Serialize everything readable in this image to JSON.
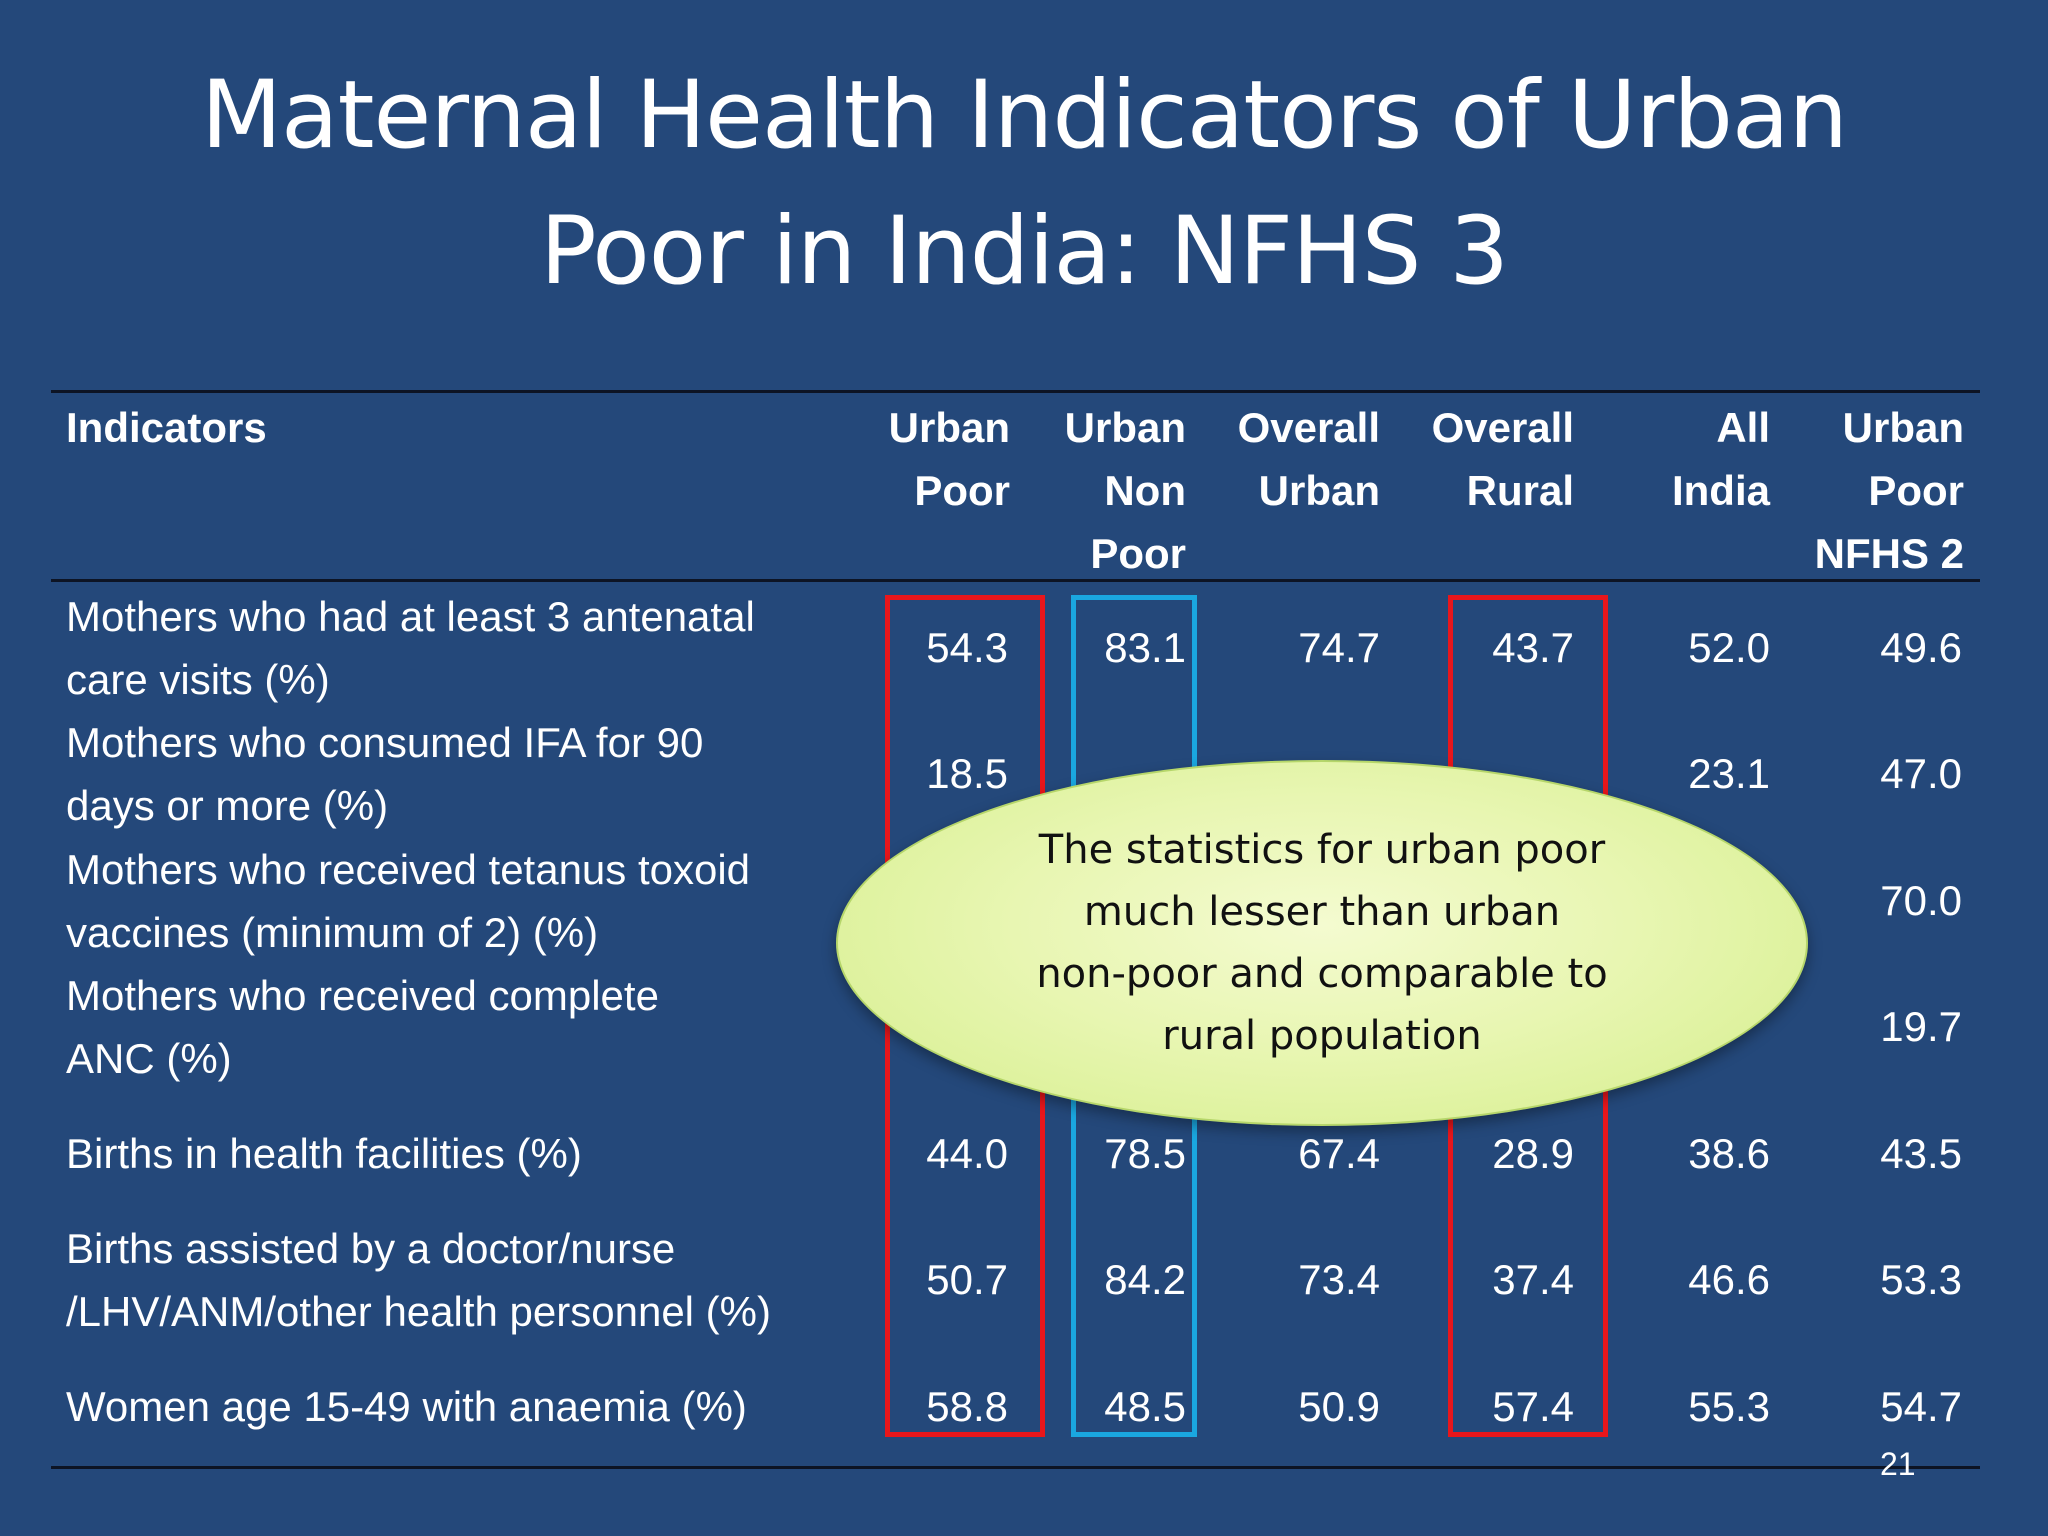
{
  "title": {
    "line1": "Maternal Health Indicators of Urban",
    "line2": "Poor in India: NFHS 3"
  },
  "table": {
    "header": {
      "indicators": "Indicators",
      "urban_poor": [
        "Urban",
        "Poor"
      ],
      "urban_non_poor": [
        "Urban",
        "Non",
        "Poor"
      ],
      "overall_urban": [
        "Overall",
        "Urban"
      ],
      "overall_rural": [
        "Overall",
        "Rural"
      ],
      "all_india": [
        "All",
        "India"
      ],
      "urban_poor_nfhs2": [
        "Urban",
        "Poor",
        "NFHS 2"
      ]
    },
    "rows": [
      {
        "label": [
          "Mothers who had at least 3 antenatal",
          "care visits (%)"
        ],
        "values": [
          "54.3",
          "83.1",
          "74.7",
          "43.7",
          "52.0",
          "49.6"
        ]
      },
      {
        "label": [
          "Mothers who consumed IFA for 90",
          "days or more (%)"
        ],
        "values": [
          "18.5",
          "",
          "",
          "",
          "23.1",
          "47.0"
        ]
      },
      {
        "label": [
          "Mothers who received tetanus toxoid",
          "vaccines (minimum of 2) (%)"
        ],
        "values": [
          "",
          "",
          "",
          "",
          "",
          "70.0"
        ]
      },
      {
        "label": [
          "Mothers who received complete",
          "ANC (%)"
        ],
        "values": [
          "",
          "",
          "",
          "",
          "",
          "19.7"
        ]
      },
      {
        "label": [
          "Births in health facilities (%)"
        ],
        "values": [
          "44.0",
          "78.5",
          "67.4",
          "28.9",
          "38.6",
          "43.5"
        ]
      },
      {
        "label": [
          "Births assisted by a doctor/nurse",
          "/LHV/ANM/other health personnel (%)"
        ],
        "values": [
          "50.7",
          "84.2",
          "73.4",
          "37.4",
          "46.6",
          "53.3"
        ]
      },
      {
        "label": [
          "Women age 15-49 with anaemia (%)"
        ],
        "values": [
          "58.8",
          "48.5",
          "50.9",
          "57.4",
          "55.3",
          "54.7"
        ]
      }
    ]
  },
  "callout": {
    "lines": [
      "The statistics for urban poor",
      "much lesser than urban",
      "non-poor and comparable to",
      "rural population"
    ]
  },
  "page_number": "21",
  "colors": {
    "background": "#24487a",
    "highlight_red": "#e8161b",
    "highlight_blue": "#1aa7e0",
    "callout_fill": "#e8f6b2"
  }
}
